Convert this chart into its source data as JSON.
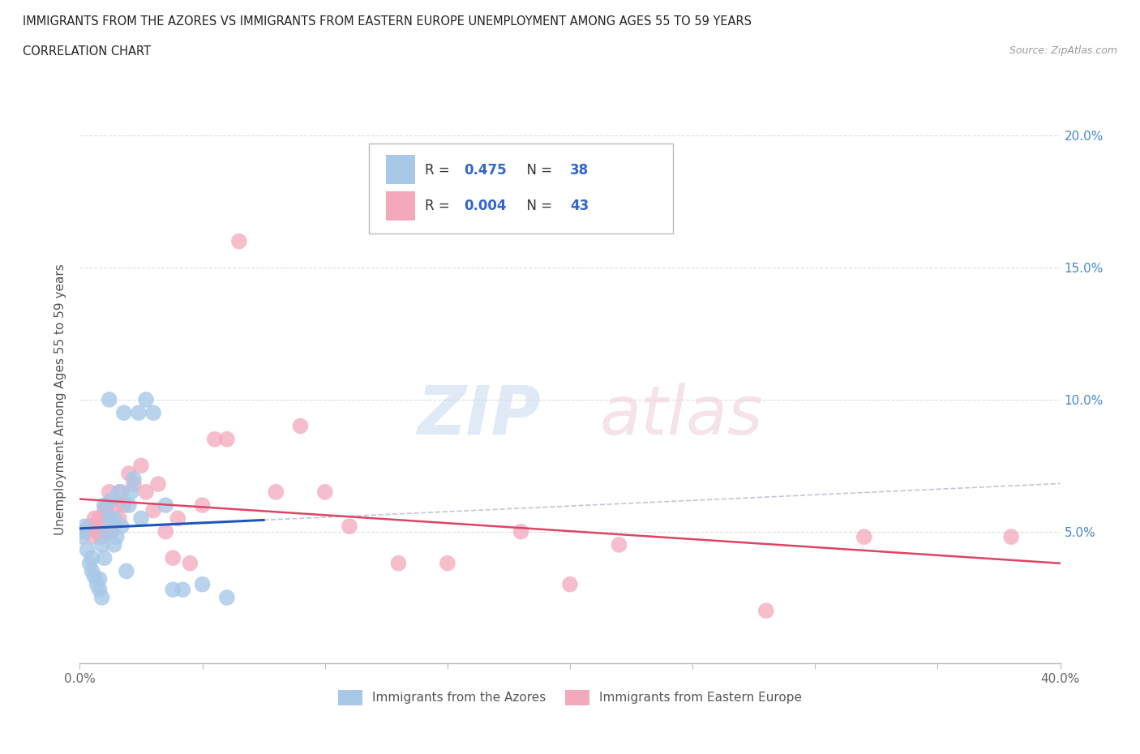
{
  "title_line1": "IMMIGRANTS FROM THE AZORES VS IMMIGRANTS FROM EASTERN EUROPE UNEMPLOYMENT AMONG AGES 55 TO 59 YEARS",
  "title_line2": "CORRELATION CHART",
  "source": "Source: ZipAtlas.com",
  "ylabel": "Unemployment Among Ages 55 to 59 years",
  "xlim": [
    0.0,
    0.4
  ],
  "ylim": [
    0.0,
    0.2
  ],
  "azores_R": 0.475,
  "azores_N": 38,
  "eastern_R": 0.004,
  "eastern_N": 43,
  "azores_color": "#a8c8e8",
  "eastern_color": "#f4a8bc",
  "azores_line_color": "#2255bb",
  "eastern_line_color": "#dd4466",
  "dash_color": "#b0b8cc",
  "background_color": "#ffffff",
  "grid_color": "#dddddd",
  "azores_x": [
    0.0,
    0.001,
    0.002,
    0.003,
    0.004,
    0.005,
    0.005,
    0.006,
    0.007,
    0.008,
    0.008,
    0.009,
    0.009,
    0.01,
    0.01,
    0.011,
    0.012,
    0.012,
    0.013,
    0.014,
    0.014,
    0.015,
    0.016,
    0.017,
    0.018,
    0.019,
    0.02,
    0.021,
    0.022,
    0.024,
    0.025,
    0.027,
    0.03,
    0.035,
    0.038,
    0.042,
    0.05,
    0.06
  ],
  "azores_y": [
    0.05,
    0.048,
    0.052,
    0.043,
    0.038,
    0.035,
    0.04,
    0.033,
    0.03,
    0.032,
    0.028,
    0.025,
    0.045,
    0.04,
    0.06,
    0.05,
    0.055,
    0.1,
    0.062,
    0.045,
    0.055,
    0.048,
    0.065,
    0.052,
    0.095,
    0.035,
    0.06,
    0.065,
    0.07,
    0.095,
    0.055,
    0.1,
    0.095,
    0.06,
    0.028,
    0.028,
    0.03,
    0.025
  ],
  "eastern_x": [
    0.0,
    0.002,
    0.004,
    0.005,
    0.006,
    0.007,
    0.008,
    0.009,
    0.01,
    0.01,
    0.011,
    0.012,
    0.013,
    0.015,
    0.016,
    0.017,
    0.018,
    0.02,
    0.022,
    0.025,
    0.027,
    0.03,
    0.032,
    0.035,
    0.038,
    0.04,
    0.045,
    0.05,
    0.055,
    0.06,
    0.065,
    0.08,
    0.09,
    0.1,
    0.11,
    0.13,
    0.15,
    0.18,
    0.2,
    0.22,
    0.28,
    0.32,
    0.38
  ],
  "eastern_y": [
    0.05,
    0.05,
    0.052,
    0.048,
    0.055,
    0.05,
    0.055,
    0.048,
    0.052,
    0.058,
    0.06,
    0.065,
    0.05,
    0.06,
    0.055,
    0.065,
    0.06,
    0.072,
    0.068,
    0.075,
    0.065,
    0.058,
    0.068,
    0.05,
    0.04,
    0.055,
    0.038,
    0.06,
    0.085,
    0.085,
    0.16,
    0.065,
    0.09,
    0.065,
    0.052,
    0.038,
    0.038,
    0.05,
    0.03,
    0.045,
    0.02,
    0.048,
    0.048
  ]
}
